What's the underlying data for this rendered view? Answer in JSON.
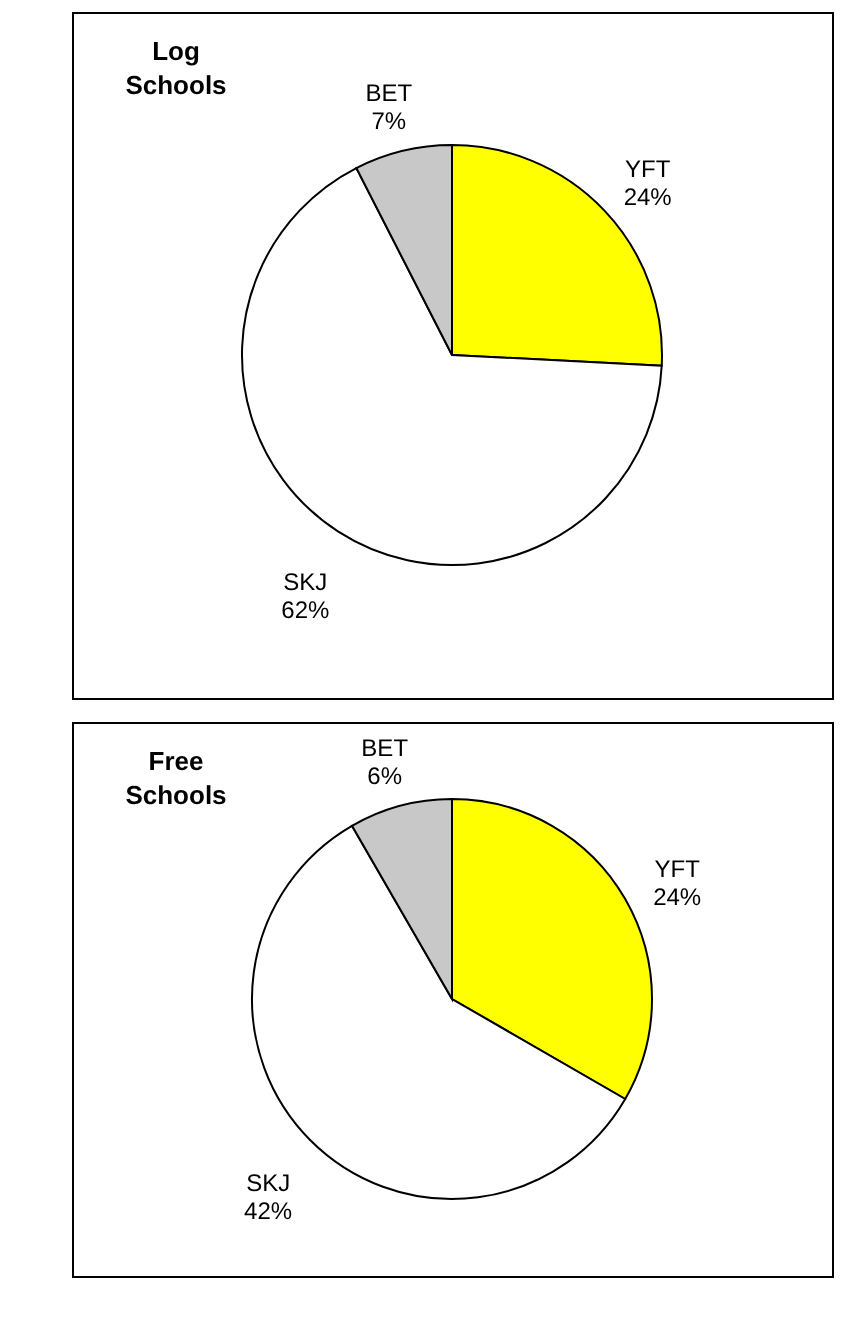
{
  "chart_data": [
    {
      "type": "pie",
      "title": "Log Schools",
      "categories": [
        "YFT",
        "SKJ",
        "BET"
      ],
      "values": [
        24,
        62,
        7
      ],
      "value_labels": [
        "24%",
        "62%",
        "7%"
      ],
      "colors": [
        "#ffff00",
        "#ffffff",
        "#c8c8c8"
      ]
    },
    {
      "type": "pie",
      "title": "Free Schools",
      "categories": [
        "YFT",
        "SKJ",
        "BET"
      ],
      "values": [
        24,
        42,
        6
      ],
      "value_labels": [
        "24%",
        "42%",
        "6%"
      ],
      "colors": [
        "#ffff00",
        "#ffffff",
        "#c8c8c8"
      ]
    }
  ]
}
